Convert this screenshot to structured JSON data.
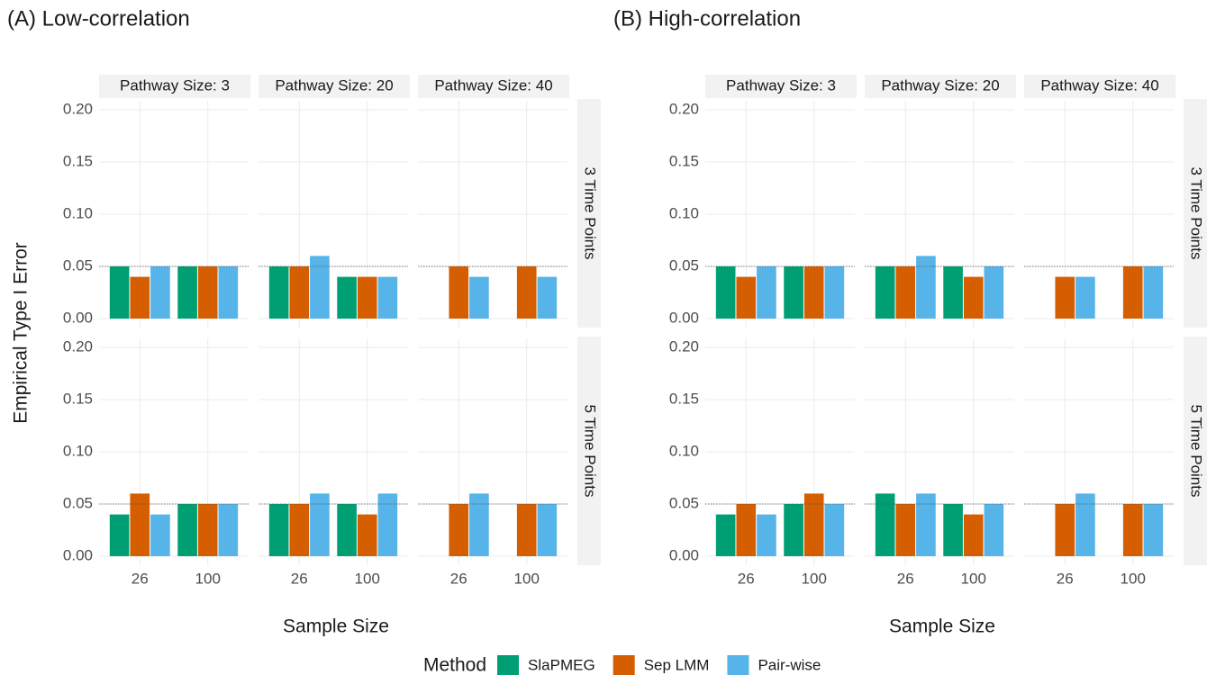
{
  "chart_data": [
    {
      "type": "bar",
      "title": "(A) Low-correlation",
      "x_label": "Sample Size",
      "y_label": "Empirical Type I Error",
      "categories": [
        "26",
        "100"
      ],
      "facet_cols": [
        "Pathway Size: 3",
        "Pathway Size: 20",
        "Pathway Size: 40"
      ],
      "facet_rows": [
        "3 Time Points",
        "5 Time Points"
      ],
      "ylim": [
        0,
        0.2
      ],
      "yticks": [
        {
          "value": 0,
          "label": "0.00"
        },
        0.05,
        {
          "value": 0.1,
          "label": "0.10"
        },
        0.15,
        {
          "value": 0.2,
          "label": "0.20"
        }
      ],
      "hline": 0.05,
      "grid": true,
      "facets": [
        [
          {
            "values": [
              [
                0.05,
                0.05
              ],
              [
                0.04,
                0.05
              ],
              [
                0.05,
                0.05
              ]
            ]
          },
          {
            "values": [
              [
                0.05,
                0.04
              ],
              [
                0.05,
                0.04
              ],
              [
                0.06,
                0.04
              ]
            ]
          },
          {
            "values": [
              [
                null,
                null
              ],
              [
                0.05,
                0.05
              ],
              [
                0.04,
                0.04
              ]
            ]
          }
        ],
        [
          {
            "values": [
              [
                0.04,
                0.05
              ],
              [
                0.06,
                0.05
              ],
              [
                0.04,
                0.05
              ]
            ]
          },
          {
            "values": [
              [
                0.05,
                0.05
              ],
              [
                0.05,
                0.04
              ],
              [
                0.06,
                0.06
              ]
            ]
          },
          {
            "values": [
              [
                null,
                null
              ],
              [
                0.05,
                0.05
              ],
              [
                0.06,
                0.05
              ]
            ]
          }
        ]
      ]
    },
    {
      "type": "bar",
      "title": "(B) High-correlation",
      "x_label": "Sample Size",
      "categories": [
        "26",
        "100"
      ],
      "facet_cols": [
        "Pathway Size: 3",
        "Pathway Size: 20",
        "Pathway Size: 40"
      ],
      "facet_rows": [
        "3 Time Points",
        "5 Time Points"
      ],
      "ylim": [
        0,
        0.2
      ],
      "yticks": [
        {
          "value": 0,
          "label": "0.00"
        },
        0.05,
        {
          "value": 0.1,
          "label": "0.10"
        },
        0.15,
        {
          "value": 0.2,
          "label": "0.20"
        }
      ],
      "hline": 0.05,
      "grid": true,
      "facets": [
        [
          {
            "values": [
              [
                0.05,
                0.05
              ],
              [
                0.04,
                0.05
              ],
              [
                0.05,
                0.05
              ]
            ]
          },
          {
            "values": [
              [
                0.05,
                0.05
              ],
              [
                0.05,
                0.04
              ],
              [
                0.06,
                0.05
              ]
            ]
          },
          {
            "values": [
              [
                null,
                null
              ],
              [
                0.04,
                0.05
              ],
              [
                0.04,
                0.05
              ]
            ]
          }
        ],
        [
          {
            "values": [
              [
                0.04,
                0.05
              ],
              [
                0.05,
                0.06
              ],
              [
                0.04,
                0.05
              ]
            ]
          },
          {
            "values": [
              [
                0.06,
                0.05
              ],
              [
                0.05,
                0.04
              ],
              [
                0.06,
                0.05
              ]
            ]
          },
          {
            "values": [
              [
                null,
                null
              ],
              [
                0.05,
                0.05
              ],
              [
                0.06,
                0.05
              ]
            ]
          }
        ]
      ]
    }
  ],
  "legend": {
    "title": "Method",
    "series": [
      {
        "name": "SlaPMEG",
        "color": "#009e73"
      },
      {
        "name": "Sep LMM",
        "color": "#d55e00"
      },
      {
        "name": "Pair-wise",
        "color": "#56b4e9"
      }
    ]
  }
}
